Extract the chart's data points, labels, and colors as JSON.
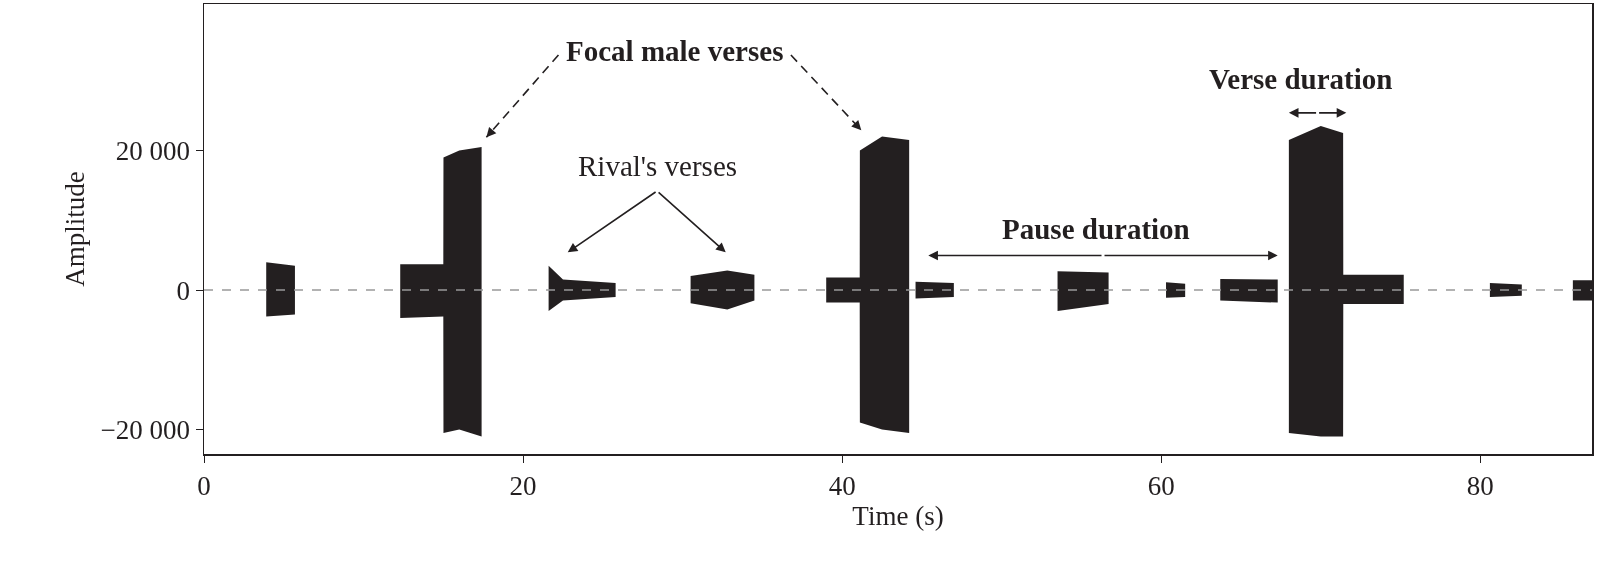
{
  "chart_data": {
    "type": "area",
    "xlabel": "Time (s)",
    "ylabel": "Amplitude",
    "x": [
      0,
      3.9,
      3.9,
      5.7,
      5.7,
      12.3,
      12.3,
      15.0,
      15.01,
      16,
      17.4,
      17.4,
      21.6,
      21.6,
      22.5,
      25.8,
      25.8,
      30.5,
      30.5,
      32.8,
      34.5,
      34.5,
      39.0,
      39.0,
      41.1,
      41.11,
      42.5,
      44.2,
      44.2,
      44.6,
      44.6,
      47.0,
      47.0,
      53.5,
      53.5,
      56.7,
      56.7,
      60.3,
      60.3,
      61.5,
      61.5,
      63.7,
      63.7,
      67.3,
      67.3,
      68.0,
      68.0,
      70.0,
      71.4,
      71.41,
      75.2,
      75.2,
      80.6,
      80.6,
      82.6,
      82.6,
      85.8,
      85.8,
      87
    ],
    "series": [
      {
        "color": "#231f20",
        "values": [
          0,
          0,
          4000,
          3500,
          0,
          0,
          3700,
          3700,
          19000,
          20000,
          20500,
          0,
          0,
          3500,
          1500,
          1000,
          0,
          0,
          2000,
          2800,
          2200,
          0,
          0,
          1800,
          1800,
          20000,
          22000,
          21500,
          0,
          0,
          1200,
          1000,
          0,
          0,
          2700,
          2500,
          0,
          0,
          1100,
          900,
          0,
          0,
          1600,
          1500,
          0,
          0,
          21500,
          23500,
          22500,
          2200,
          2200,
          0,
          0,
          1000,
          800,
          0,
          0,
          1400,
          1400
        ]
      },
      {
        "color": "#231f20",
        "values": [
          0,
          0,
          -3800,
          -3500,
          0,
          0,
          -4000,
          -3800,
          -20500,
          -20000,
          -21000,
          0,
          0,
          -3000,
          -1500,
          -1000,
          0,
          0,
          -1900,
          -2800,
          -1500,
          0,
          0,
          -1800,
          -1800,
          -19000,
          -20000,
          -20500,
          0,
          0,
          -1200,
          -1000,
          0,
          0,
          -3000,
          -2000,
          0,
          0,
          -1100,
          -1000,
          0,
          0,
          -1500,
          -1800,
          0,
          0,
          -20500,
          -21000,
          -21000,
          -2000,
          -2000,
          0,
          0,
          -1000,
          -800,
          0,
          0,
          -1500,
          -1500
        ]
      }
    ],
    "xlim": [
      0,
      87
    ],
    "xticks": [
      0,
      20,
      40,
      60,
      80
    ],
    "ylim": [
      -23500,
      41000
    ],
    "yticks": [
      {
        "value": -20000,
        "label": "−20 000"
      },
      0,
      {
        "value": 20000,
        "label": "20 000"
      }
    ],
    "ref_lines": [
      {
        "axis": "y",
        "value": 0,
        "color": "#999999",
        "line_style": "dashed"
      }
    ],
    "annotations": [
      "Focal male verses",
      "Rival's verses",
      "Pause duration",
      "Verse duration"
    ],
    "grid": false
  }
}
